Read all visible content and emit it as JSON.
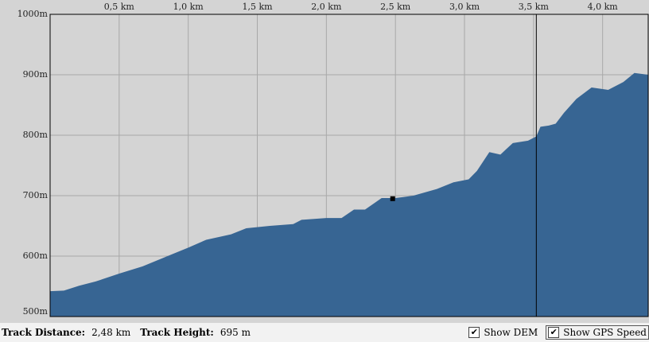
{
  "chart_data": {
    "type": "area",
    "x": [
      0,
      0.1,
      0.21,
      0.33,
      0.5,
      0.67,
      0.85,
      1.0,
      1.13,
      1.31,
      1.42,
      1.59,
      1.76,
      1.82,
      2.0,
      2.11,
      2.2,
      2.28,
      2.4,
      2.5,
      2.63,
      2.8,
      2.92,
      3.03,
      3.09,
      3.18,
      3.26,
      3.35,
      3.46,
      3.52,
      3.55,
      3.61,
      3.66,
      3.72,
      3.81,
      3.92,
      4.04,
      4.15,
      4.23,
      4.33
    ],
    "values": [
      542,
      543,
      551,
      558,
      571,
      583,
      600,
      614,
      627,
      636,
      646,
      650,
      653,
      660,
      663,
      663,
      677,
      677,
      696,
      696,
      700,
      711,
      722,
      727,
      741,
      772,
      768,
      787,
      791,
      798,
      814,
      816,
      819,
      837,
      860,
      879,
      875,
      888,
      903,
      900
    ],
    "color": "#376593",
    "xlim": [
      0,
      4.33
    ],
    "ylim": [
      500,
      1000
    ],
    "xticks": [
      {
        "value": 0.5,
        "label": "0,5 km"
      },
      {
        "value": 1.0,
        "label": "1,0 km"
      },
      {
        "value": 1.5,
        "label": "1,5 km"
      },
      {
        "value": 2.0,
        "label": "2,0 km"
      },
      {
        "value": 2.5,
        "label": "2,5 km"
      },
      {
        "value": 3.0,
        "label": "3,0 km"
      },
      {
        "value": 3.5,
        "label": "3,5 km"
      },
      {
        "value": 4.0,
        "label": "4,0 km"
      }
    ],
    "yticks": [
      {
        "value": 500,
        "label": "500m"
      },
      {
        "value": 600,
        "label": "600m"
      },
      {
        "value": 700,
        "label": "700m"
      },
      {
        "value": 800,
        "label": "800m"
      },
      {
        "value": 900,
        "label": "900m"
      },
      {
        "value": 1000,
        "label": "1000m"
      }
    ],
    "grid": true,
    "marker": {
      "x": 2.48,
      "y": 695
    },
    "cursor_x": 3.52
  },
  "status": {
    "distance_label": "Track Distance:",
    "distance": "2,48 km",
    "height_label": "Track Height:",
    "height": "695 m"
  },
  "options": [
    {
      "label": "Show DEM",
      "checked": true
    },
    {
      "label": "Show GPS Speed",
      "checked": true
    }
  ]
}
